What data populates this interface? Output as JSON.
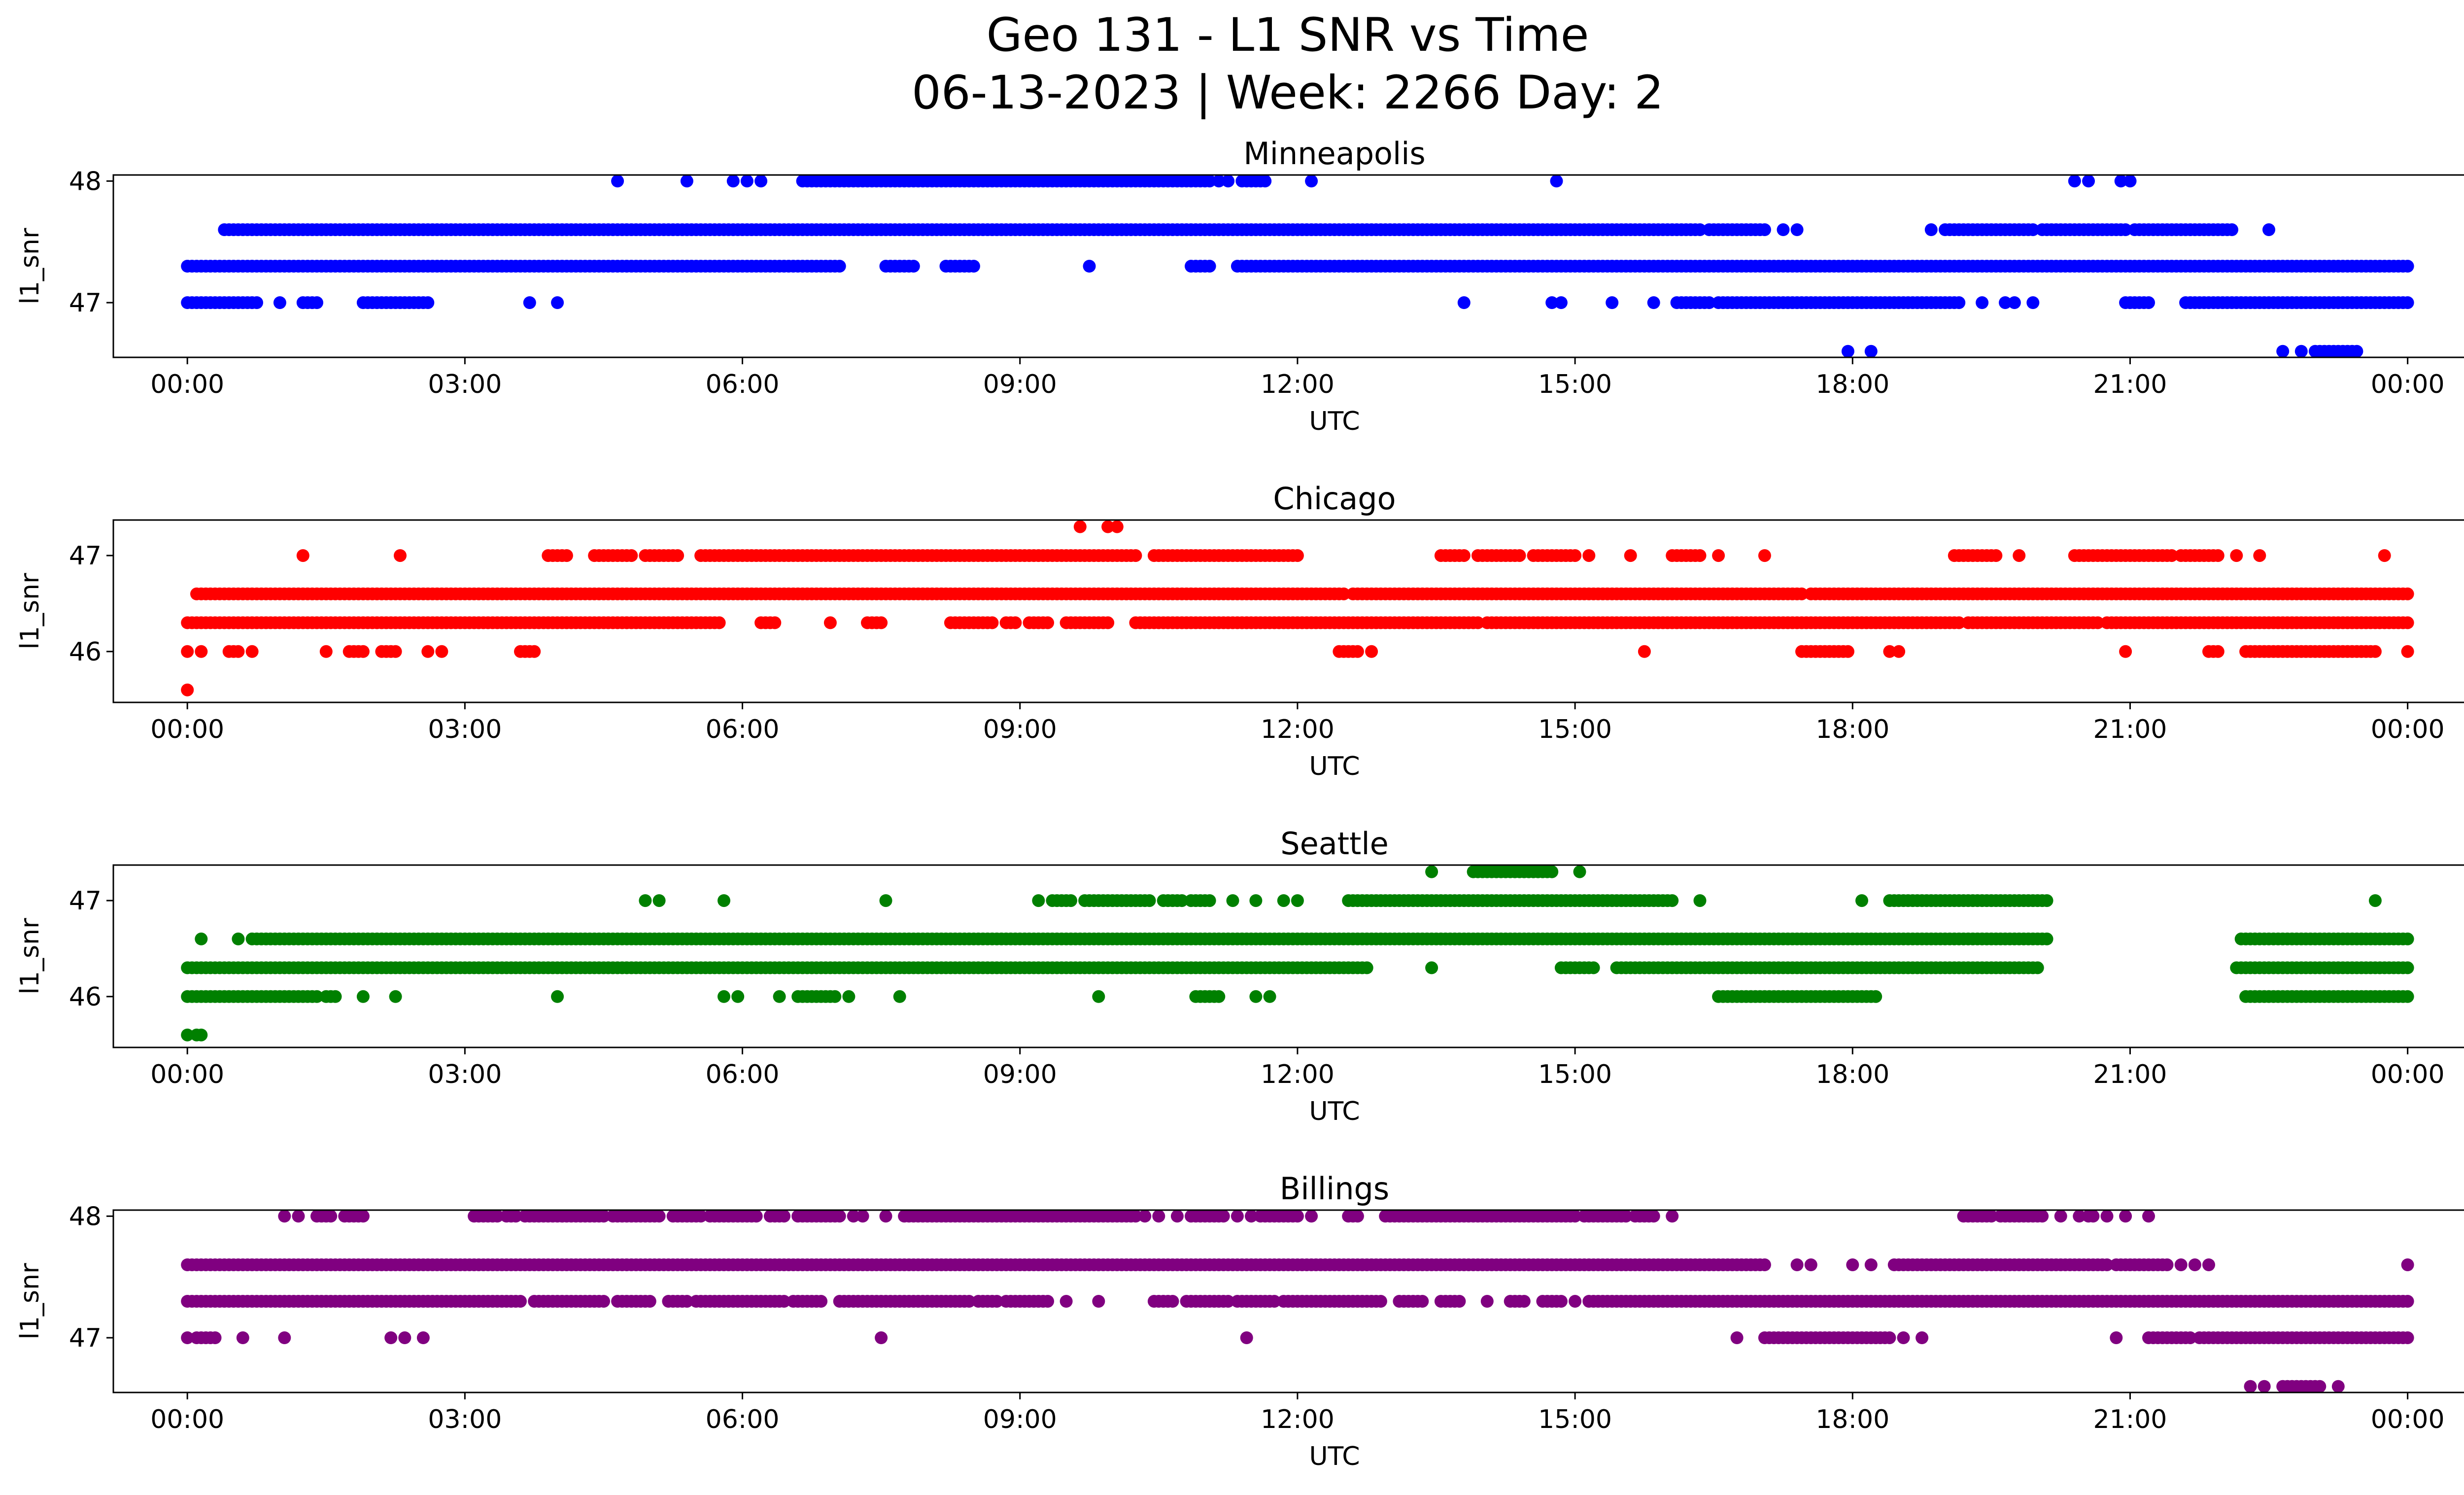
{
  "figure": {
    "title_line1": "Geo 131 - L1 SNR vs Time",
    "title_line2": "06-13-2023 | Week: 2266 Day: 2"
  },
  "chart_data": [
    {
      "type": "scatter",
      "title": "Minneapolis",
      "xlabel": "UTC",
      "ylabel": "l1_snr",
      "color": "#0000ff",
      "xlim": [
        -0.8,
        25.6
      ],
      "ylim": [
        46.55,
        48.05
      ],
      "x_ticks": [
        0,
        3,
        6,
        9,
        12,
        15,
        18,
        21,
        24
      ],
      "x_tick_labels": [
        "00:00",
        "03:00",
        "06:00",
        "09:00",
        "12:00",
        "15:00",
        "18:00",
        "21:00",
        "00:00"
      ],
      "y_ticks": [
        47,
        48
      ],
      "y_tick_labels": [
        "47",
        "48"
      ],
      "grid": false,
      "series": [
        {
          "segments": [
            {
              "y": 48.0,
              "x": [
                4.65,
                5.4,
                5.9,
                6.05,
                6.2,
                [
                  6.65,
                  11.05
                ],
                11.15,
                11.25,
                [
                  11.4,
                  11.65
                ],
                12.15,
                14.8,
                20.4,
                20.55,
                20.9,
                21.0
              ]
            },
            {
              "y": 47.6,
              "x": [
                [
                  0.4,
                  2.25
                ],
                [
                  2.3,
                  16.35
                ],
                [
                  16.45,
                  17.05
                ],
                17.25,
                17.4,
                18.85,
                [
                  19.0,
                  19.95
                ],
                [
                  20.05,
                  20.95
                ],
                [
                  21.05,
                  22.1
                ],
                22.5
              ]
            },
            {
              "y": 47.3,
              "x": [
                [
                  0,
                  7.0
                ],
                7.05,
                [
                  7.55,
                  7.85
                ],
                [
                  8.2,
                  8.5
                ],
                9.75,
                [
                  10.85,
                  11.05
                ],
                [
                  11.35,
                  11.55
                ],
                [
                  11.6,
                  24
                ]
              ]
            },
            {
              "y": 47.0,
              "x": [
                [
                  0,
                  0.75
                ],
                1.0,
                [
                  1.25,
                  1.4
                ],
                [
                  1.9,
                  2.6
                ],
                3.7,
                4.0,
                13.8,
                14.75,
                14.85,
                15.4,
                15.85,
                [
                  16.1,
                  16.45
                ],
                [
                  16.55,
                  19.15
                ],
                19.4,
                19.65,
                19.75,
                19.95,
                [
                  20.95,
                  21.2
                ],
                [
                  21.6,
                  24
                ]
              ]
            },
            {
              "y": 46.6,
              "x": [
                17.95,
                18.2,
                22.65,
                22.85,
                [
                  23.0,
                  23.45
                ]
              ]
            }
          ]
        }
      ]
    },
    {
      "type": "scatter",
      "title": "Chicago",
      "xlabel": "UTC",
      "ylabel": "l1_snr",
      "color": "#ff0000",
      "xlim": [
        -0.8,
        25.6
      ],
      "ylim": [
        45.47,
        47.37
      ],
      "x_ticks": [
        0,
        3,
        6,
        9,
        12,
        15,
        18,
        21,
        24
      ],
      "x_tick_labels": [
        "00:00",
        "03:00",
        "06:00",
        "09:00",
        "12:00",
        "15:00",
        "18:00",
        "21:00",
        "00:00"
      ],
      "y_ticks": [
        46,
        47
      ],
      "y_tick_labels": [
        "46",
        "47"
      ],
      "grid": false,
      "series": [
        {
          "segments": [
            {
              "y": 47.3,
              "x": [
                9.65,
                9.95,
                10.05
              ]
            },
            {
              "y": 47.0,
              "x": [
                1.25,
                2.3,
                [
                  3.9,
                  4.1
                ],
                [
                  4.4,
                  4.8
                ],
                [
                  4.95,
                  5.3
                ],
                [
                  5.55,
                  10.25
                ],
                [
                  10.45,
                  11.35
                ],
                [
                  11.4,
                  12.0
                ],
                [
                  13.55,
                  13.8
                ],
                [
                  13.95,
                  14.4
                ],
                [
                  14.55,
                  15.0
                ],
                15.15,
                15.6,
                [
                  16.05,
                  16.35
                ],
                16.55,
                17.05,
                [
                  19.1,
                  19.55
                ],
                19.8,
                [
                  20.4,
                  21.45
                ],
                [
                  21.55,
                  21.95
                ],
                22.15,
                22.4,
                23.75
              ]
            },
            {
              "y": 46.6,
              "x": [
                [
                  0.1,
                  0.55
                ],
                [
                  0.6,
                  12.5
                ],
                [
                  12.6,
                  17.45
                ],
                [
                  17.55,
                  24
                ]
              ]
            },
            {
              "y": 46.3,
              "x": [
                [
                  0,
                  5.75
                ],
                [
                  6.2,
                  6.35
                ],
                6.95,
                [
                  7.35,
                  7.5
                ],
                [
                  8.25,
                  8.7
                ],
                [
                  8.85,
                  8.95
                ],
                [
                  9.1,
                  9.3
                ],
                [
                  9.5,
                  9.95
                ],
                [
                  10.25,
                  12.0
                ],
                [
                  12.05,
                  13.95
                ],
                [
                  14.05,
                  19.15
                ],
                [
                  19.25,
                  20.2
                ],
                [
                  20.25,
                  20.65
                ],
                [
                  20.75,
                  24
                ]
              ]
            },
            {
              "y": 46.0,
              "x": [
                0,
                0.15,
                [
                  0.45,
                  0.55
                ],
                0.7,
                1.5,
                [
                  1.75,
                  1.9
                ],
                [
                  2.1,
                  2.25
                ],
                2.6,
                2.75,
                [
                  3.6,
                  3.75
                ],
                [
                  12.45,
                  12.65
                ],
                12.8,
                15.75,
                [
                  17.45,
                  17.95
                ],
                18.4,
                18.5,
                20.95,
                [
                  21.85,
                  21.95
                ],
                [
                  22.25,
                  23.65
                ],
                [
                  24,
                  24
                ]
              ]
            },
            {
              "y": 45.6,
              "x": [
                0.0
              ]
            }
          ]
        }
      ]
    },
    {
      "type": "scatter",
      "title": "Seattle",
      "xlabel": "UTC",
      "ylabel": "l1_snr",
      "color": "#008000",
      "xlim": [
        -0.8,
        25.6
      ],
      "ylim": [
        45.47,
        47.37
      ],
      "x_ticks": [
        0,
        3,
        6,
        9,
        12,
        15,
        18,
        21,
        24
      ],
      "x_tick_labels": [
        "00:00",
        "03:00",
        "06:00",
        "09:00",
        "12:00",
        "15:00",
        "18:00",
        "21:00",
        "00:00"
      ],
      "y_ticks": [
        46,
        47
      ],
      "y_tick_labels": [
        "46",
        "47"
      ],
      "grid": false,
      "series": [
        {
          "segments": [
            {
              "y": 47.3,
              "x": [
                13.45,
                [
                  13.9,
                  14.75
                ],
                15.05
              ]
            },
            {
              "y": 47.0,
              "x": [
                4.95,
                5.1,
                5.8,
                7.55,
                9.2,
                [
                  9.35,
                  9.55
                ],
                [
                  9.7,
                  10.4
                ],
                [
                  10.55,
                  10.75
                ],
                [
                  10.85,
                  11.05
                ],
                11.3,
                11.55,
                11.85,
                12.0,
                [
                  12.55,
                  16.05
                ],
                16.35,
                18.1,
                [
                  18.4,
                  20.1
                ],
                23.65
              ]
            },
            {
              "y": 46.6,
              "x": [
                0.15,
                0.55,
                [
                  0.7,
                  20.1
                ],
                [
                  22.2,
                  24
                ]
              ]
            },
            {
              "y": 46.3,
              "x": [
                [
                  0,
                  12.75
                ],
                13.45,
                [
                  14.85,
                  15.2
                ],
                [
                  15.45,
                  20.0
                ],
                [
                  22.15,
                  24
                ]
              ]
            },
            {
              "y": 46.0,
              "x": [
                [
                  0,
                  0.85
                ],
                [
                  0.9,
                  1.4
                ],
                [
                  1.5,
                  1.6
                ],
                1.9,
                2.25,
                4.0,
                5.8,
                5.95,
                6.4,
                [
                  6.6,
                  7.0
                ],
                7.15,
                7.7,
                9.85,
                [
                  10.9,
                  11.15
                ],
                11.55,
                11.7,
                [
                  16.55,
                  18.25
                ],
                [
                  22.25,
                  24
                ]
              ]
            },
            {
              "y": 45.6,
              "x": [
                0.0,
                0.1,
                0.15
              ]
            }
          ]
        }
      ]
    },
    {
      "type": "scatter",
      "title": "Billings",
      "xlabel": "UTC",
      "ylabel": "l1_snr",
      "color": "#800080",
      "xlim": [
        -0.8,
        25.6
      ],
      "ylim": [
        46.55,
        48.05
      ],
      "x_ticks": [
        0,
        3,
        6,
        9,
        12,
        15,
        18,
        21,
        24
      ],
      "x_tick_labels": [
        "00:00",
        "03:00",
        "06:00",
        "09:00",
        "12:00",
        "15:00",
        "18:00",
        "21:00",
        "00:00"
      ],
      "y_ticks": [
        47,
        48
      ],
      "y_tick_labels": [
        "47",
        "48"
      ],
      "grid": false,
      "series": [
        {
          "segments": [
            {
              "y": 48.0,
              "x": [
                1.05,
                1.2,
                [
                  1.4,
                  1.55
                ],
                [
                  1.7,
                  1.9
                ],
                [
                  3.1,
                  3.35
                ],
                [
                  3.45,
                  3.55
                ],
                [
                  3.65,
                  4.5
                ],
                [
                  4.6,
                  5.1
                ],
                [
                  5.25,
                  5.55
                ],
                [
                  5.65,
                  6.15
                ],
                [
                  6.3,
                  6.45
                ],
                [
                  6.6,
                  7.05
                ],
                7.2,
                7.3,
                7.55,
                [
                  7.75,
                  10.25
                ],
                10.35,
                10.5,
                10.7,
                [
                  10.85,
                  11.2
                ],
                11.35,
                11.5,
                [
                  11.6,
                  12.0
                ],
                12.15,
                [
                  12.55,
                  12.65
                ],
                [
                  12.95,
                  14.5
                ],
                [
                  14.55,
                  15.0
                ],
                [
                  15.1,
                  15.55
                ],
                [
                  15.65,
                  15.85
                ],
                16.05,
                [
                  19.2,
                  19.5
                ],
                [
                  19.6,
                  20.05
                ],
                20.25,
                20.45,
                20.55,
                20.6,
                20.75,
                20.95,
                21.2
              ]
            },
            {
              "y": 47.6,
              "x": [
                [
                  0,
                  17.05
                ],
                17.4,
                17.55,
                18.0,
                18.2,
                [
                  18.45,
                  20.75
                ],
                [
                  20.85,
                  21.4
                ],
                21.55,
                21.7,
                21.85,
                24.0
              ]
            },
            {
              "y": 47.3,
              "x": [
                [
                  0,
                  3.6
                ],
                [
                  3.75,
                  4.5
                ],
                [
                  4.65,
                  5.0
                ],
                [
                  5.2,
                  5.4
                ],
                [
                  5.5,
                  6.45
                ],
                [
                  6.55,
                  6.85
                ],
                [
                  7.05,
                  7.6
                ],
                [
                  7.65,
                  8.45
                ],
                [
                  8.55,
                  8.75
                ],
                [
                  8.85,
                  9.3
                ],
                9.5,
                9.85,
                [
                  10.45,
                  10.65
                ],
                [
                  10.8,
                  11.25
                ],
                [
                  11.35,
                  11.75
                ],
                [
                  11.85,
                  12.45
                ],
                [
                  12.5,
                  12.9
                ],
                [
                  13.1,
                  13.35
                ],
                [
                  13.55,
                  13.75
                ],
                14.05,
                [
                  14.3,
                  14.45
                ],
                [
                  14.65,
                  14.85
                ],
                15.0,
                [
                  15.15,
                  24
                ]
              ]
            },
            {
              "y": 47.0,
              "x": [
                0,
                [
                  0.1,
                  0.3
                ],
                0.6,
                1.05,
                2.2,
                2.35,
                2.55,
                7.5,
                11.45,
                16.75,
                [
                  17.05,
                  18.4
                ],
                18.55,
                18.75,
                20.85,
                [
                  21.2,
                  21.65
                ],
                [
                  21.75,
                  24
                ]
              ]
            },
            {
              "y": 46.6,
              "x": [
                22.3,
                22.45,
                [
                  22.65,
                  23.05
                ],
                23.25
              ]
            }
          ]
        }
      ]
    }
  ]
}
